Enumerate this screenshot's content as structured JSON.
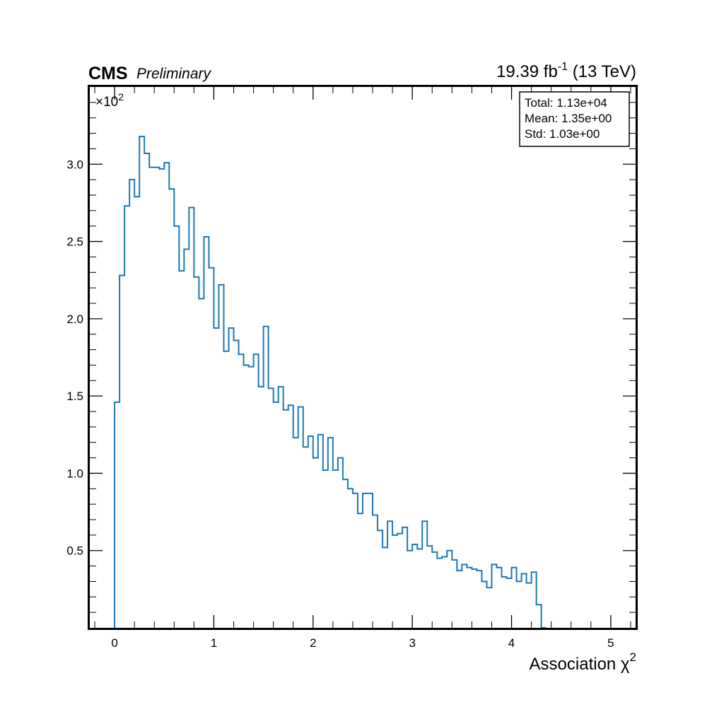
{
  "header": {
    "experiment": "CMS",
    "status": "Preliminary",
    "lumi_value": "19.39 fb",
    "lumi_exponent": "-1",
    "energy": "(13 TeV)"
  },
  "stats_box": {
    "total": "Total: 1.13e+04",
    "mean": "Mean: 1.35e+00",
    "std": "Std: 1.03e+00"
  },
  "chart_data": {
    "type": "histogram",
    "style": "step",
    "color": "#1f77b4",
    "xlabel": "Association χ",
    "xlabel_exponent": "2",
    "y_multiplier_base": "×10",
    "y_multiplier_exponent": "2",
    "xlim": [
      -0.25,
      5.25
    ],
    "ylim": [
      0,
      3.5
    ],
    "x_ticks": [
      0,
      1,
      2,
      3,
      4,
      5
    ],
    "x_tick_labels": [
      "0",
      "1",
      "2",
      "3",
      "4",
      "5"
    ],
    "y_ticks": [
      0.5,
      1.0,
      1.5,
      2.0,
      2.5,
      3.0
    ],
    "y_tick_labels": [
      "0.5",
      "1.0",
      "1.5",
      "2.0",
      "2.5",
      "3.0"
    ],
    "bin_start": 0,
    "bin_width": 0.05,
    "values": [
      1.46,
      2.28,
      2.73,
      2.9,
      2.79,
      3.18,
      3.07,
      2.98,
      2.98,
      2.97,
      3.01,
      2.84,
      2.6,
      2.31,
      2.45,
      2.72,
      2.27,
      2.13,
      2.53,
      2.33,
      1.94,
      2.22,
      1.79,
      1.94,
      1.86,
      1.77,
      1.7,
      1.69,
      1.77,
      1.56,
      1.95,
      1.55,
      1.46,
      1.56,
      1.41,
      1.44,
      1.23,
      1.43,
      1.17,
      1.24,
      1.1,
      1.25,
      1.02,
      1.23,
      1.02,
      1.1,
      0.96,
      0.9,
      0.87,
      0.74,
      0.87,
      0.87,
      0.73,
      0.63,
      0.52,
      0.69,
      0.6,
      0.61,
      0.65,
      0.5,
      0.54,
      0.51,
      0.69,
      0.53,
      0.49,
      0.45,
      0.46,
      0.5,
      0.44,
      0.37,
      0.41,
      0.39,
      0.38,
      0.37,
      0.3,
      0.26,
      0.41,
      0.39,
      0.33,
      0.32,
      0.39,
      0.3,
      0.35,
      0.29,
      0.36,
      0.15,
      0.0
    ]
  }
}
